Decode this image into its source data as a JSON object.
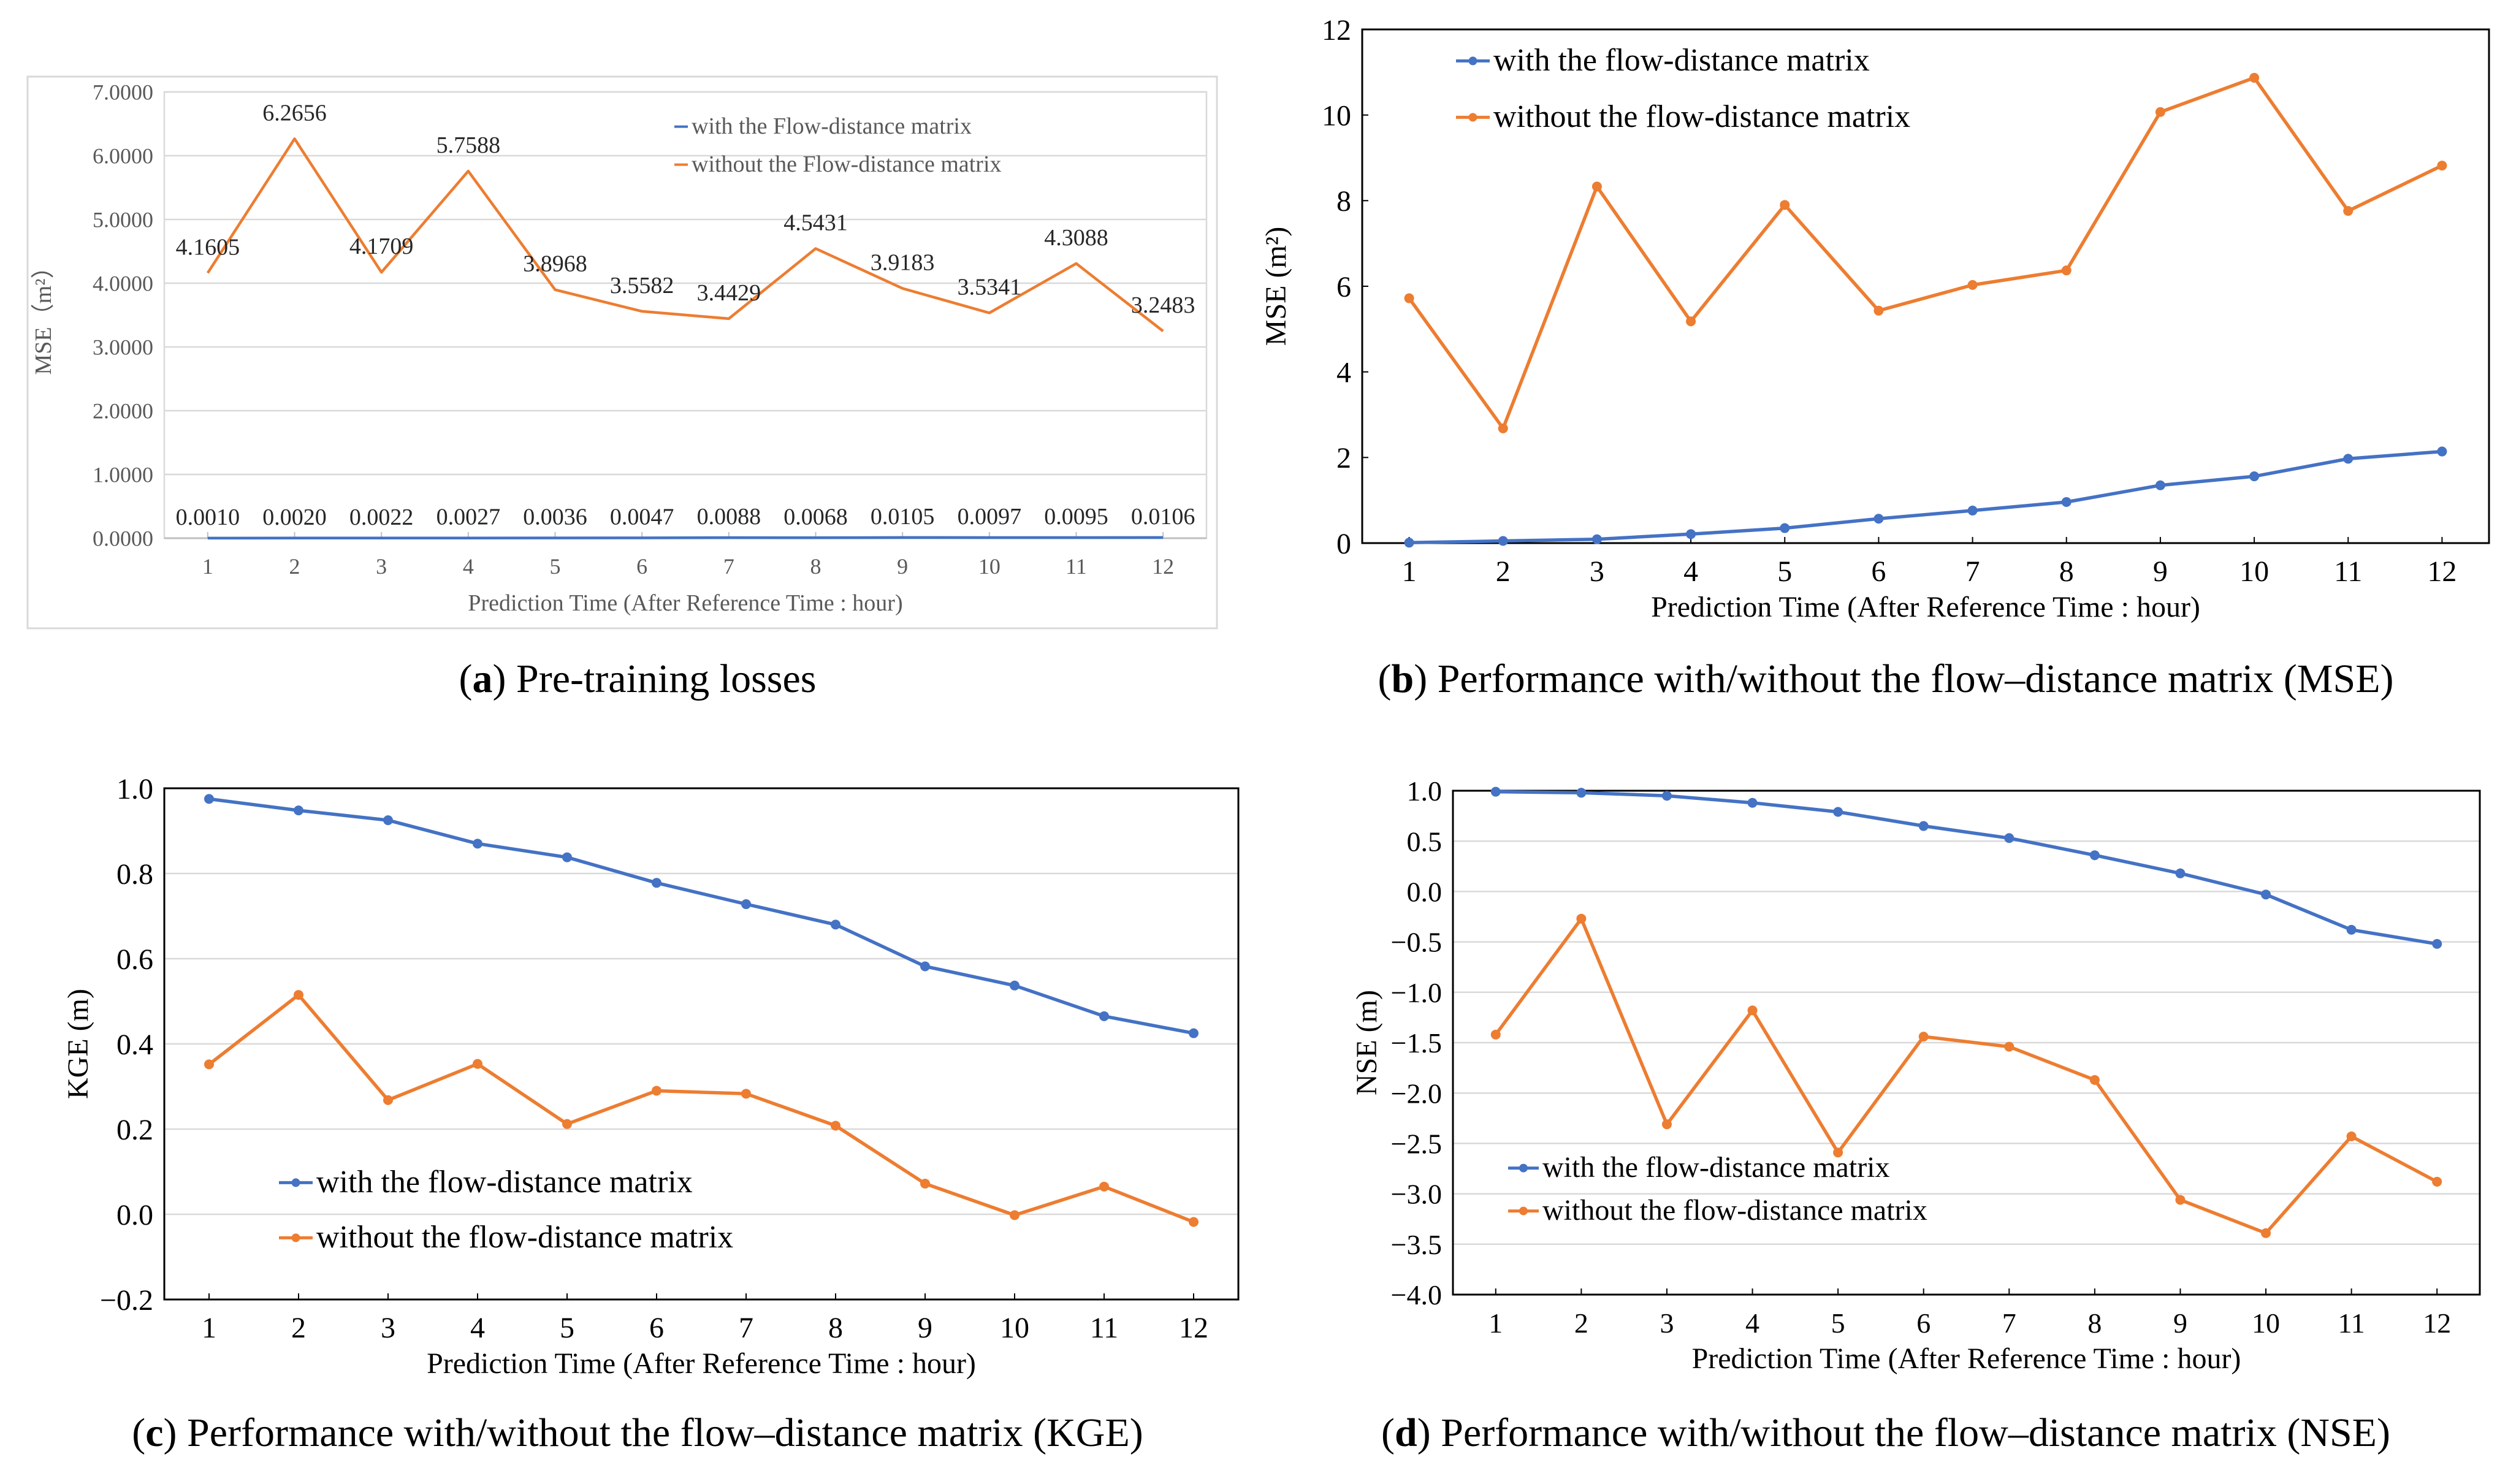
{
  "colors": {
    "with": "#4472C4",
    "without": "#ED7D31",
    "grid": "#d9d9d9",
    "axis": "#a6a6a6"
  },
  "captions": [
    {
      "label": "a",
      "text": "Pre-training losses"
    },
    {
      "label": "b",
      "text": "Performance with/without the flow–distance matrix (MSE)"
    },
    {
      "label": "c",
      "text": "Performance with/without the flow–distance matrix (KGE)"
    },
    {
      "label": "d",
      "text": "Performance with/without the flow–distance matrix (NSE)"
    }
  ],
  "chart_data": [
    {
      "type": "line",
      "id": "a",
      "xlabel": "Prediction Time (After Reference Time : hour)",
      "ylabel": "MSE（m²）",
      "ylim": [
        0,
        7
      ],
      "yticks": [
        0,
        1,
        2,
        3,
        4,
        5,
        6,
        7
      ],
      "ytick_labels": [
        "0.0000",
        "1.0000",
        "2.0000",
        "3.0000",
        "4.0000",
        "5.0000",
        "6.0000",
        "7.0000"
      ],
      "grid": true,
      "legend": "top-right",
      "categories": [
        "1",
        "2",
        "3",
        "4",
        "5",
        "6",
        "7",
        "8",
        "9",
        "10",
        "11",
        "12"
      ],
      "series": [
        {
          "name": "with the Flow-distance matrix",
          "color": "#4472C4",
          "markers": false,
          "values": [
            0.001,
            0.002,
            0.0022,
            0.0027,
            0.0036,
            0.0047,
            0.0088,
            0.0068,
            0.0105,
            0.0097,
            0.0095,
            0.0106
          ],
          "labels": [
            "0.0010",
            "0.0020",
            "0.0022",
            "0.0027",
            "0.0036",
            "0.0047",
            "0.0088",
            "0.0068",
            "0.0105",
            "0.0097",
            "0.0095",
            "0.0106"
          ]
        },
        {
          "name": "without the Flow-distance matrix",
          "color": "#ED7D31",
          "markers": false,
          "values": [
            4.1605,
            6.2656,
            4.1709,
            5.7588,
            3.8968,
            3.5582,
            3.4429,
            4.5431,
            3.9183,
            3.5341,
            4.3088,
            3.2483
          ],
          "labels": [
            "4.1605",
            "6.2656",
            "4.1709",
            "5.7588",
            "3.8968",
            "3.5582",
            "3.4429",
            "4.5431",
            "3.9183",
            "3.5341",
            "4.3088",
            "3.2483"
          ]
        }
      ]
    },
    {
      "type": "line",
      "id": "b",
      "xlabel": "Prediction Time (After Reference Time : hour)",
      "ylabel": "MSE (m²)",
      "ylim": [
        0,
        12
      ],
      "yticks": [
        0,
        2,
        4,
        6,
        8,
        10,
        12
      ],
      "ytick_labels": [
        "0",
        "2",
        "4",
        "6",
        "8",
        "10",
        "12"
      ],
      "grid": false,
      "legend": "top-left",
      "categories": [
        "1",
        "2",
        "3",
        "4",
        "5",
        "6",
        "7",
        "8",
        "9",
        "10",
        "11",
        "12"
      ],
      "series": [
        {
          "name": "with the flow-distance matrix",
          "color": "#4472C4",
          "markers": true,
          "values": [
            0.01,
            0.05,
            0.09,
            0.21,
            0.35,
            0.57,
            0.76,
            0.96,
            1.35,
            1.56,
            1.97,
            2.14
          ]
        },
        {
          "name": "without the flow-distance matrix",
          "color": "#ED7D31",
          "markers": true,
          "values": [
            5.72,
            2.68,
            8.33,
            5.18,
            7.9,
            5.43,
            6.03,
            6.37,
            10.07,
            10.87,
            7.76,
            8.82
          ]
        }
      ]
    },
    {
      "type": "line",
      "id": "c",
      "xlabel": "Prediction Time (After Reference Time : hour)",
      "ylabel": "KGE (m)",
      "ylim": [
        -0.2,
        1.0
      ],
      "yticks": [
        -0.2,
        0.0,
        0.2,
        0.4,
        0.6,
        0.8,
        1.0
      ],
      "ytick_labels": [
        "−0.2",
        "0.0",
        "0.2",
        "0.4",
        "0.6",
        "0.8",
        "1.0"
      ],
      "grid": true,
      "legend": "bottom-left",
      "categories": [
        "1",
        "2",
        "3",
        "4",
        "5",
        "6",
        "7",
        "8",
        "9",
        "10",
        "11",
        "12"
      ],
      "series": [
        {
          "name": "with the flow-distance matrix",
          "color": "#4472C4",
          "markers": true,
          "values": [
            0.975,
            0.948,
            0.925,
            0.87,
            0.838,
            0.778,
            0.728,
            0.68,
            0.582,
            0.537,
            0.465,
            0.425
          ]
        },
        {
          "name": "without the flow-distance matrix",
          "color": "#ED7D31",
          "markers": true,
          "values": [
            0.352,
            0.515,
            0.268,
            0.353,
            0.212,
            0.29,
            0.283,
            0.208,
            0.072,
            -0.002,
            0.065,
            -0.018
          ]
        }
      ]
    },
    {
      "type": "line",
      "id": "d",
      "xlabel": "Prediction Time (After Reference Time : hour)",
      "ylabel": "NSE (m)",
      "ylim": [
        -4.0,
        1.0
      ],
      "yticks": [
        -4.0,
        -3.5,
        -3.0,
        -2.5,
        -2.0,
        -1.5,
        -1.0,
        -0.5,
        0.0,
        0.5,
        1.0
      ],
      "ytick_labels": [
        "−4.0",
        "−3.5",
        "−3.0",
        "−2.5",
        "−2.0",
        "−1.5",
        "−1.0",
        "−0.5",
        "0.0",
        "0.5",
        "1.0"
      ],
      "grid": true,
      "legend": "bottom-left",
      "categories": [
        "1",
        "2",
        "3",
        "4",
        "5",
        "6",
        "7",
        "8",
        "9",
        "10",
        "11",
        "12"
      ],
      "series": [
        {
          "name": "with the flow-distance matrix",
          "color": "#4472C4",
          "markers": true,
          "values": [
            0.99,
            0.98,
            0.95,
            0.88,
            0.79,
            0.65,
            0.53,
            0.36,
            0.18,
            -0.03,
            -0.38,
            -0.52
          ]
        },
        {
          "name": "without the flow-distance matrix",
          "color": "#ED7D31",
          "markers": true,
          "values": [
            -1.42,
            -0.27,
            -2.31,
            -1.18,
            -2.59,
            -1.44,
            -1.54,
            -1.87,
            -3.06,
            -3.39,
            -2.43,
            -2.88
          ]
        }
      ]
    }
  ]
}
